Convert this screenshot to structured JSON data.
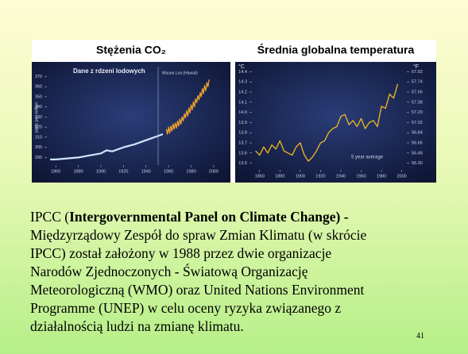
{
  "chart_data": [
    {
      "type": "line",
      "title": "Stężenia CO₂",
      "y_label": "parts per million",
      "annotations": [
        "Dane z rdzeni lodowych",
        "Mauna Loa (Hawaii)"
      ],
      "series": [
        {
          "color": "#cfe6ff",
          "x": [
            1855,
            1860,
            1870,
            1880,
            1890,
            1900,
            1905,
            1910,
            1920,
            1930,
            1940,
            1950,
            1955
          ],
          "values": [
            288,
            288,
            289,
            290,
            292,
            294,
            297,
            296,
            300,
            303,
            307,
            311,
            313
          ]
        },
        {
          "color": "#f0a030",
          "x": [
            1958,
            1959,
            1960,
            1961,
            1962,
            1963,
            1964,
            1965,
            1966,
            1967,
            1968,
            1969,
            1970,
            1971,
            1972,
            1973,
            1974,
            1975,
            1976,
            1977,
            1978,
            1979,
            1980,
            1981,
            1982,
            1983,
            1984,
            1985,
            1986,
            1987,
            1988,
            1989,
            1990,
            1991,
            1992,
            1993,
            1994,
            1995,
            1996
          ],
          "values": [
            318,
            313,
            320,
            314,
            321,
            316,
            323,
            318,
            324,
            319,
            326,
            321,
            328,
            323,
            330,
            326,
            333,
            329,
            336,
            331,
            339,
            334,
            342,
            337,
            345,
            340,
            348,
            344,
            351,
            347,
            354,
            350,
            358,
            353,
            361,
            356,
            364,
            360,
            367
          ]
        }
      ],
      "xlim": [
        1850,
        2005
      ],
      "xticks": [
        1860,
        1880,
        1900,
        1920,
        1940,
        1960,
        1980,
        2000
      ],
      "ylim": [
        284,
        375
      ],
      "yticks": [
        290,
        300,
        310,
        320,
        330,
        340,
        350,
        360,
        370
      ]
    },
    {
      "type": "line",
      "title": "Średnia globalna temperatura",
      "y_label": "°C",
      "y2_label": "°F",
      "annotations": [
        "5 year average"
      ],
      "series": [
        {
          "color": "#f5b820",
          "x": [
            1856,
            1860,
            1864,
            1868,
            1872,
            1876,
            1880,
            1884,
            1888,
            1892,
            1896,
            1900,
            1904,
            1908,
            1912,
            1916,
            1920,
            1924,
            1928,
            1932,
            1936,
            1940,
            1944,
            1948,
            1952,
            1956,
            1960,
            1964,
            1968,
            1972,
            1976,
            1980,
            1984,
            1988,
            1992,
            1996
          ],
          "values": [
            13.62,
            13.58,
            13.66,
            13.6,
            13.68,
            13.64,
            13.72,
            13.62,
            13.6,
            13.58,
            13.66,
            13.7,
            13.58,
            13.52,
            13.56,
            13.62,
            13.7,
            13.72,
            13.8,
            13.84,
            13.86,
            13.96,
            13.98,
            13.88,
            13.92,
            13.86,
            13.94,
            13.84,
            13.9,
            13.92,
            13.86,
            14.06,
            14.04,
            14.18,
            14.14,
            14.28
          ]
        }
      ],
      "xlim": [
        1850,
        2005
      ],
      "xticks": [
        1860,
        1880,
        1900,
        1920,
        1940,
        1960,
        1980,
        2000
      ],
      "ylim": [
        13.45,
        14.45
      ],
      "yticks": [
        {
          "value": 13.5,
          "label": "13.5"
        },
        {
          "value": 13.6,
          "label": "13.6"
        },
        {
          "value": 13.7,
          "label": "13.7"
        },
        {
          "value": 13.8,
          "label": "13.8"
        },
        {
          "value": 13.9,
          "label": "13.9"
        },
        {
          "value": 14,
          "label": "14.0"
        },
        {
          "value": 14.1,
          "label": "14.1"
        },
        {
          "value": 14.2,
          "label": "14.2"
        },
        {
          "value": 14.3,
          "label": "14.3"
        },
        {
          "value": 14.4,
          "label": "14.4"
        }
      ],
      "y2lim": [
        56.21,
        58.01
      ],
      "y2ticks": [
        {
          "value": 56.3,
          "label": "56.30"
        },
        {
          "value": 56.48,
          "label": "56.48"
        },
        {
          "value": 56.66,
          "label": "56.66"
        },
        {
          "value": 56.84,
          "label": "56.84"
        },
        {
          "value": 57.02,
          "label": "57.02"
        },
        {
          "value": 57.2,
          "label": "57.20"
        },
        {
          "value": 57.38,
          "label": "57.38"
        },
        {
          "value": 57.56,
          "label": "57.56"
        },
        {
          "value": 57.74,
          "label": "57.74"
        },
        {
          "value": 57.92,
          "label": "57.92"
        }
      ]
    }
  ],
  "text": {
    "prefix": "IPCC (",
    "bold": "Intergovernmental Panel on Climate Change) -",
    "lines": [
      "Międzyrządowy Zespół do spraw Zmian Klimatu (w skrócie",
      "IPCC) został założony w 1988 przez dwie organizacje",
      "Narodów Zjednoczonych - Światową Organizację",
      "Meteorologiczną (WMO) oraz United Nations Environment",
      "Programme (UNEP) w celu oceny ryzyka związanego z",
      "działalnością ludzi na zmianę klimatu."
    ]
  },
  "page_number": 41
}
